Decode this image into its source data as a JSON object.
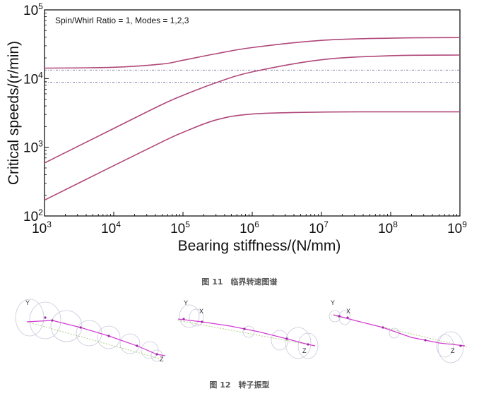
{
  "chart_data": {
    "type": "line",
    "title": "Spin/Whirl Ratio = 1, Modes = 1,2,3",
    "xlabel": "Bearing stiffness/(N/mm)",
    "ylabel": "Critical speeds/(r/min)",
    "x_scale": "log",
    "y_scale": "log",
    "xlim": [
      1000,
      1000000000
    ],
    "ylim": [
      100,
      100000
    ],
    "x_ticks": [
      {
        "base": "10",
        "exp": "3"
      },
      {
        "base": "10",
        "exp": "4"
      },
      {
        "base": "10",
        "exp": "5"
      },
      {
        "base": "10",
        "exp": "6"
      },
      {
        "base": "10",
        "exp": "7"
      },
      {
        "base": "10",
        "exp": "8"
      },
      {
        "base": "10",
        "exp": "9"
      }
    ],
    "y_ticks": [
      {
        "base": "10",
        "exp": "2"
      },
      {
        "base": "10",
        "exp": "3"
      },
      {
        "base": "10",
        "exp": "4"
      },
      {
        "base": "10",
        "exp": "5"
      }
    ],
    "grid": false,
    "legend": "none",
    "line_color": "#b0487a",
    "ref_line_color": "#6a6a9a",
    "x": [
      1000,
      10000,
      50000,
      100000,
      300000,
      1000000,
      10000000,
      100000000,
      1000000000
    ],
    "series": [
      {
        "values": [
          170,
          540,
          1200,
          1650,
          2500,
          3050,
          3250,
          3280,
          3280
        ]
      },
      {
        "values": [
          590,
          1880,
          4200,
          5700,
          8700,
          12500,
          18800,
          21500,
          22000
        ]
      },
      {
        "values": [
          14200,
          14600,
          16300,
          18500,
          23000,
          28300,
          36000,
          38800,
          39500
        ]
      }
    ],
    "reference_lines": [
      13300,
      8800
    ]
  },
  "captions": {
    "figure11": "图 11　临界转速图谱",
    "figure12": "图 12　转子振型"
  },
  "mode_shapes": {
    "axis_y": "Y",
    "axis_x": "X",
    "axis_z": "Z"
  }
}
